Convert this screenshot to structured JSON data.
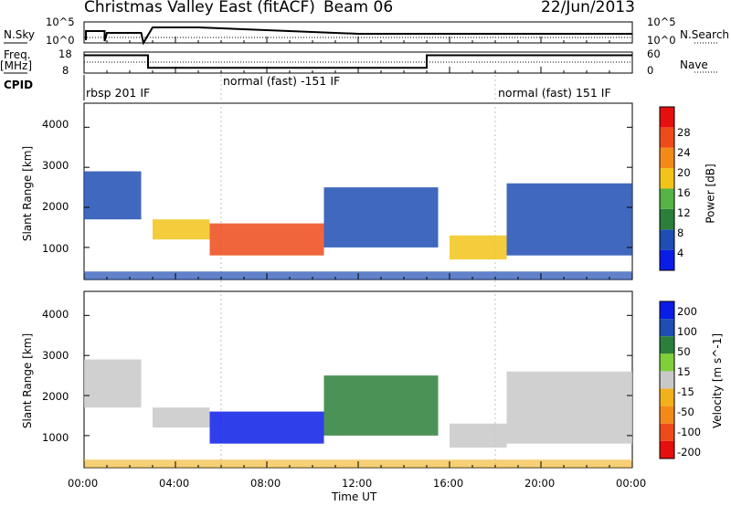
{
  "header": {
    "title": "Christmas Valley East (fitACF)",
    "beam": "Beam 06",
    "date": "22/Jun/2013"
  },
  "left_labels": {
    "nsky": "N.Sky",
    "freq": "Freq.",
    "mhz": "[MHz]",
    "cpid": "CPID"
  },
  "right_labels": {
    "nsearch": "N.Search",
    "nave": "Nave"
  },
  "noise_axis": {
    "top": "10^5",
    "bottom": "10^0"
  },
  "freq_axis": {
    "top": "18",
    "bottom": "8"
  },
  "nave_axis": {
    "top": "60",
    "bottom": "0"
  },
  "cpid_segments": [
    {
      "label": "rbsp 201 IF",
      "start_hour": 0.0
    },
    {
      "label": "normal (fast) -151 IF",
      "start_hour": 6.0
    },
    {
      "label": "normal (fast) 151 IF",
      "start_hour": 18.0
    }
  ],
  "x_axis": {
    "label": "Time UT",
    "ticks": [
      "00:00",
      "04:00",
      "08:00",
      "12:00",
      "16:00",
      "20:00",
      "00:00"
    ]
  },
  "power_panel": {
    "ylabel": "Slant Range [km]",
    "y_ticks": [
      "1000",
      "2000",
      "3000",
      "4000"
    ],
    "colorbar_label": "Power [dB]",
    "colorbar_ticks": [
      "4",
      "8",
      "12",
      "16",
      "20",
      "24",
      "28"
    ],
    "colors": [
      "#0a1de6",
      "#1e4db3",
      "#2b7f3a",
      "#56b346",
      "#f2c41a",
      "#f28a1a",
      "#ef4a1a",
      "#e50f0f"
    ]
  },
  "velocity_panel": {
    "ylabel": "Slant Range [km]",
    "y_ticks": [
      "1000",
      "2000",
      "3000",
      "4000"
    ],
    "colorbar_label": "Velocity [m s^-1]",
    "colorbar_ticks": [
      "200",
      "100",
      "50",
      "15",
      "-15",
      "-50",
      "-100",
      "-200"
    ],
    "colors": [
      "#0a1de6",
      "#1e4db3",
      "#2b7f3a",
      "#7fcf3a",
      "#c8c8c8",
      "#f2b01a",
      "#f28a1a",
      "#ef4a1a",
      "#e50f0f"
    ]
  },
  "chart_data": {
    "type": "heatmap",
    "title": "Christmas Valley East (fitACF)",
    "subtitle": "Beam 06",
    "date": "22/Jun/2013",
    "xlabel": "Time UT",
    "xlim_hours": [
      0,
      24
    ],
    "ylabel": "Slant Range [km]",
    "ylim_km": [
      200,
      4600
    ],
    "panels": [
      {
        "name": "Power",
        "unit": "dB",
        "range": [
          4,
          28
        ]
      },
      {
        "name": "Velocity",
        "unit": "m s^-1",
        "range": [
          -200,
          200
        ]
      }
    ],
    "frequency_MHz": [
      {
        "start_hour": 0.0,
        "end_hour": 2.8,
        "value": 16.5
      },
      {
        "start_hour": 2.8,
        "end_hour": 15.0,
        "value": 10.5
      },
      {
        "start_hour": 15.0,
        "end_hour": 24.0,
        "value": 16.5
      }
    ],
    "echo_regions": [
      {
        "start_hour": 0.0,
        "end_hour": 2.5,
        "range_km": [
          1700,
          2900
        ],
        "power_dB": 10,
        "velocity": -15
      },
      {
        "start_hour": 3.0,
        "end_hour": 5.5,
        "range_km": [
          1200,
          1700
        ],
        "power_dB": 18,
        "velocity": 0
      },
      {
        "start_hour": 5.5,
        "end_hour": 10.5,
        "range_km": [
          800,
          1600
        ],
        "power_dB": 26,
        "velocity": 200
      },
      {
        "start_hour": 10.5,
        "end_hour": 15.5,
        "range_km": [
          1000,
          2500
        ],
        "power_dB": 10,
        "velocity": 50
      },
      {
        "start_hour": 16.0,
        "end_hour": 18.5,
        "range_km": [
          700,
          1300
        ],
        "power_dB": 20,
        "velocity": -15
      },
      {
        "start_hour": 18.5,
        "end_hour": 24.0,
        "range_km": [
          800,
          2600
        ],
        "power_dB": 10,
        "velocity": -15
      }
    ]
  }
}
